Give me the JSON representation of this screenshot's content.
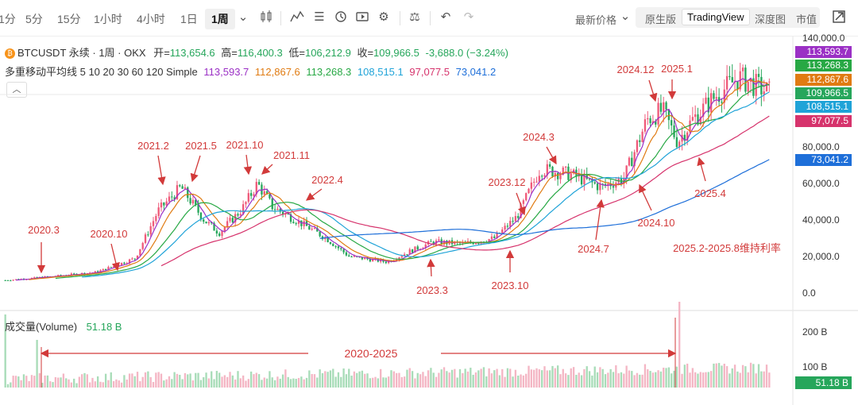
{
  "toolbar": {
    "intervals": [
      "1分",
      "5分",
      "15分",
      "1小时",
      "4小时",
      "1日",
      "1周"
    ],
    "active_interval": "1周",
    "price_type": "最新价格",
    "price_views": [
      "原生版",
      "TradingView",
      "深度图",
      "市值"
    ],
    "active_view": "TradingView"
  },
  "legend": {
    "symbol": "BTCUSDT 永续 · 1周 · OKX",
    "open_label": "开=",
    "open": "113,654.6",
    "high_label": "高=",
    "high": "116,400.3",
    "low_label": "低=",
    "low": "106,212.9",
    "close_label": "收=",
    "close": "109,966.5",
    "change": "-3,688.0 (−3.24%)",
    "ma_title": "多重移动平均线 5 10 20 30 60 120 Simple",
    "ma_values": [
      "113,593.7",
      "112,867.6",
      "113,268.3",
      "108,515.1",
      "97,077.5",
      "73,041.2"
    ]
  },
  "price_axis": [
    "140,000.0",
    "80,000.0",
    "60,000.0",
    "40,000.0",
    "20,000.0",
    "0.0"
  ],
  "price_tags": [
    {
      "text": "113,593.7",
      "color": "#9b30c5"
    },
    {
      "text": "113,268.3",
      "color": "#27a844"
    },
    {
      "text": "112,867.6",
      "color": "#e07b12"
    },
    {
      "text": "109,966.5",
      "color": "#26a65b"
    },
    {
      "text": "108,515.1",
      "color": "#1fa3d8"
    },
    {
      "text": "97,077.5",
      "color": "#d6336c"
    },
    {
      "text": "73,041.2",
      "color": "#1e6fd9"
    }
  ],
  "volume": {
    "label": "成交量(Volume)",
    "value": "51.18 B",
    "axis": [
      "200 B",
      "100 B"
    ],
    "tag": "51.18 B",
    "range_label": "2020-2025"
  },
  "annotations": {
    "a2020_3": "2020.3",
    "a2020_10": "2020.10",
    "a2021_2": "2021.2",
    "a2021_5": "2021.5",
    "a2021_10": "2021.10",
    "a2021_11": "2021.11",
    "a2022_4": "2022.4",
    "a2023_3": "2023.3",
    "a2023_10": "2023.10",
    "a2023_12": "2023.12",
    "a2024_3": "2024.3",
    "a2024_7": "2024.7",
    "a2024_10": "2024.10",
    "a2024_12": "2024.12",
    "a2025_1": "2025.1",
    "a2025_4": "2025.4",
    "a2025_note": "2025.2-2025.8维持利率"
  },
  "colors": {
    "up": "#ef5a7a",
    "down": "#26a65b",
    "annotation": "#d23a3a"
  }
}
